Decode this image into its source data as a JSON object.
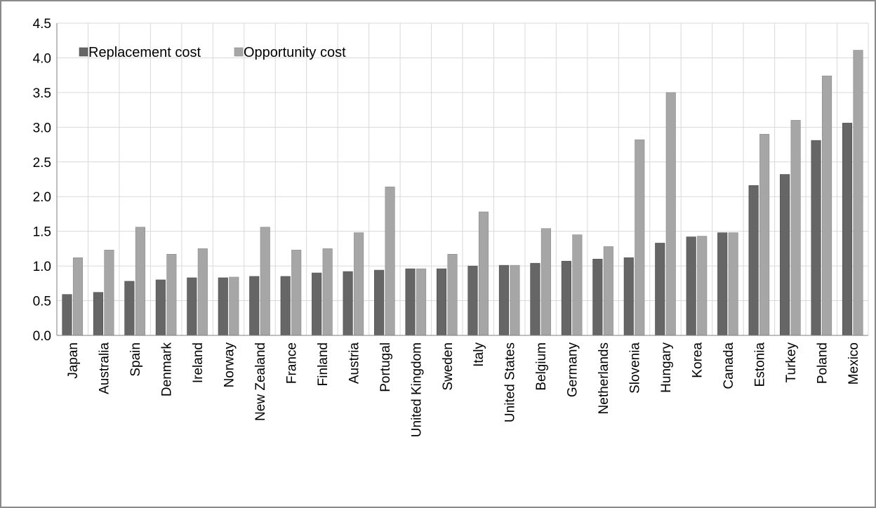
{
  "chart_data": {
    "type": "bar",
    "title": "",
    "xlabel": "",
    "ylabel": "",
    "ylim": [
      0,
      4.5
    ],
    "yticks": [
      "0.0",
      "0.5",
      "1.0",
      "1.5",
      "2.0",
      "2.5",
      "3.0",
      "3.5",
      "4.0",
      "4.5"
    ],
    "grid": true,
    "legend_position": "top-left",
    "categories": [
      "Japan",
      "Australia",
      "Spain",
      "Denmark",
      "Ireland",
      "Norway",
      "New Zealand",
      "France",
      "Finland",
      "Austria",
      "Portugal",
      "United Kingdom",
      "Sweden",
      "Italy",
      "United States",
      "Belgium",
      "Germany",
      "Netherlands",
      "Slovenia",
      "Hungary",
      "Korea",
      "Canada",
      "Estonia",
      "Turkey",
      "Poland",
      "Mexico"
    ],
    "series": [
      {
        "name": "Replacement cost",
        "color": "#666666",
        "values": [
          0.59,
          0.62,
          0.78,
          0.8,
          0.83,
          0.83,
          0.85,
          0.85,
          0.9,
          0.92,
          0.94,
          0.96,
          0.96,
          1.0,
          1.01,
          1.04,
          1.07,
          1.1,
          1.12,
          1.33,
          1.42,
          1.48,
          2.16,
          2.32,
          2.81,
          3.06
        ]
      },
      {
        "name": "Opportunity cost",
        "color": "#a6a6a6",
        "values": [
          1.12,
          1.23,
          1.56,
          1.17,
          1.25,
          0.84,
          1.56,
          1.23,
          1.25,
          1.48,
          2.14,
          0.96,
          1.17,
          1.78,
          1.01,
          1.54,
          1.45,
          1.28,
          2.82,
          3.5,
          1.43,
          1.48,
          2.9,
          3.1,
          3.74,
          4.11
        ]
      }
    ]
  }
}
